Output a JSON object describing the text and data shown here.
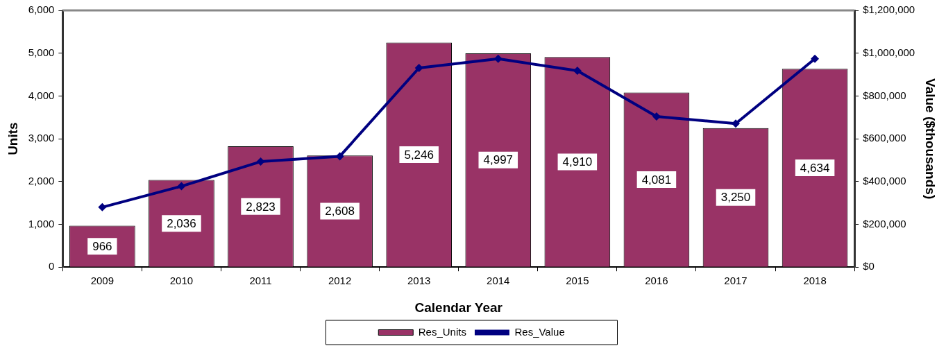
{
  "chart_data": {
    "type": "bar",
    "xlabel": "Calendar Year",
    "ylabel": "Units",
    "y2label": "Value ($thousands)",
    "categories": [
      "2009",
      "2010",
      "2011",
      "2012",
      "2013",
      "2014",
      "2015",
      "2016",
      "2017",
      "2018"
    ],
    "series": [
      {
        "name": "Res_Units",
        "color": "#993366",
        "values": [
          966,
          2036,
          2823,
          2608,
          5246,
          4997,
          4910,
          4081,
          3250,
          4634
        ],
        "value_labels": [
          "966",
          "2,036",
          "2,823",
          "2,608",
          "5,246",
          "4,997",
          "4,910",
          "4,081",
          "3,250",
          "4,634"
        ]
      },
      {
        "name": "Res_Value",
        "type": "line",
        "axis": "y2",
        "color": "#000080",
        "marker": "diamond",
        "values": [
          280000,
          378000,
          493000,
          518000,
          931000,
          974000,
          918000,
          704000,
          671000,
          974000
        ]
      }
    ],
    "ylim": [
      0,
      6000
    ],
    "yticks": [
      {
        "value": 0,
        "label": "0"
      },
      {
        "value": 1000,
        "label": "1,000"
      },
      {
        "value": 2000,
        "label": "2,000"
      },
      {
        "value": 3000,
        "label": "3,000"
      },
      {
        "value": 4000,
        "label": "4,000"
      },
      {
        "value": 5000,
        "label": "5,000"
      },
      {
        "value": 6000,
        "label": "6,000"
      }
    ],
    "y2lim": [
      0,
      1200000
    ],
    "y2ticks": [
      {
        "value": 0,
        "label": "$0"
      },
      {
        "value": 200000,
        "label": "$200,000"
      },
      {
        "value": 400000,
        "label": "$400,000"
      },
      {
        "value": 600000,
        "label": "$600,000"
      },
      {
        "value": 800000,
        "label": "$800,000"
      },
      {
        "value": 1000000,
        "label": "$1,000,000"
      },
      {
        "value": 1200000,
        "label": "$1,200,000"
      }
    ],
    "grid": false,
    "legend": "bottom"
  }
}
